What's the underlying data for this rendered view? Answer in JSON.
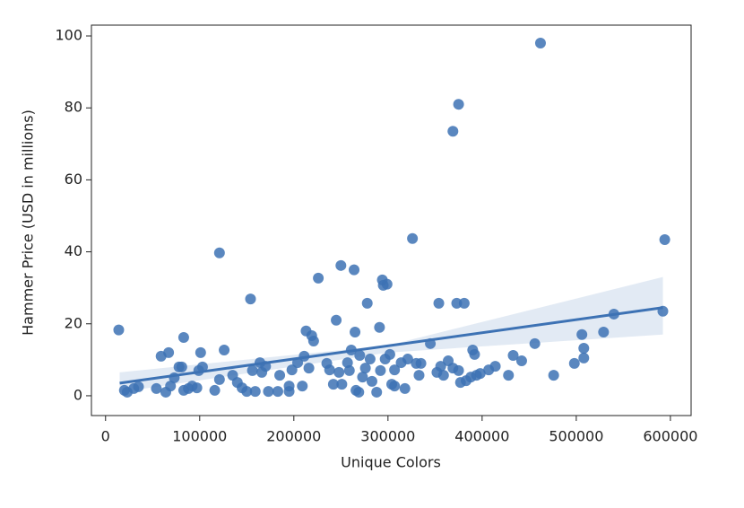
{
  "chart_data": {
    "type": "scatter",
    "xlabel": "Unique Colors",
    "ylabel": "Hammer Price (USD in millions)",
    "xlim": [
      -15000,
      622000
    ],
    "ylim": [
      -5.5,
      103
    ],
    "xticks": [
      0,
      100000,
      200000,
      300000,
      400000,
      500000,
      600000
    ],
    "yticks": [
      0,
      20,
      40,
      60,
      80,
      100
    ],
    "color": "#3d72b4",
    "x": [
      14000,
      20000,
      23000,
      30000,
      35000,
      54000,
      59000,
      64000,
      67000,
      69000,
      73000,
      78000,
      81000,
      83000,
      83000,
      88000,
      92000,
      97000,
      99000,
      101000,
      103000,
      116000,
      121000,
      121000,
      126000,
      135000,
      140000,
      145000,
      150000,
      154000,
      156000,
      159000,
      164000,
      166000,
      170000,
      173000,
      183000,
      185000,
      195000,
      195000,
      198000,
      204000,
      209000,
      211000,
      213000,
      216000,
      219000,
      221000,
      226000,
      235000,
      238000,
      242000,
      245000,
      248000,
      250000,
      251000,
      257000,
      259000,
      261000,
      264000,
      265000,
      266000,
      269000,
      270000,
      273000,
      276000,
      278000,
      281000,
      283000,
      288000,
      291000,
      292000,
      294000,
      295000,
      297000,
      299000,
      302000,
      304000,
      307000,
      307000,
      314000,
      318000,
      321000,
      326000,
      330000,
      333000,
      335000,
      345000,
      352000,
      354000,
      356000,
      359000,
      364000,
      369000,
      369000,
      373000,
      375000,
      375000,
      377000,
      381000,
      383000,
      388000,
      390000,
      392000,
      394000,
      398000,
      407000,
      414000,
      428000,
      433000,
      442000,
      456000,
      462000,
      476000,
      498000,
      506000,
      508000,
      508000,
      529000,
      540000,
      592000,
      594000
    ],
    "y": [
      18.3,
      1.5,
      1,
      2,
      2.5,
      2,
      11,
      1,
      12,
      2.7,
      5,
      8,
      8,
      16.2,
      1.5,
      2,
      2.7,
      2.2,
      7,
      12,
      8,
      1.5,
      39.7,
      4.5,
      12.7,
      5.7,
      3.7,
      2.2,
      1.2,
      26.9,
      7,
      1.2,
      9.2,
      6.5,
      8.2,
      1.2,
      1.2,
      5.7,
      1.2,
      2.7,
      7.2,
      9.2,
      2.7,
      11,
      18,
      7.7,
      16.7,
      15.2,
      32.7,
      9,
      7.2,
      3.2,
      21,
      6.5,
      36.2,
      3.2,
      9.2,
      7,
      12.7,
      35,
      17.7,
      1.5,
      1,
      11.2,
      5.2,
      7.7,
      25.7,
      10.2,
      4,
      1,
      19,
      7,
      32.2,
      30.7,
      10.2,
      31,
      11.5,
      3.2,
      7.2,
      2.7,
      9.2,
      2,
      10.2,
      43.7,
      9,
      5.7,
      9,
      14.5,
      6.5,
      25.7,
      8.2,
      5.7,
      9.7,
      73.5,
      7.7,
      25.7,
      81,
      7,
      3.7,
      25.7,
      4.2,
      5.2,
      12.7,
      11.5,
      5.7,
      6.2,
      7.2,
      8.2,
      5.7,
      11.2,
      9.7,
      14.5,
      98,
      5.7,
      9,
      17,
      13.2,
      10.5,
      17.7,
      22.7,
      23.5,
      43.4
    ],
    "fit": {
      "x": [
        15000,
        592000
      ],
      "y": [
        3.5,
        24.5
      ]
    },
    "band": {
      "x": [
        15000,
        300000,
        592000
      ],
      "lower": [
        1,
        12,
        17
      ],
      "upper": [
        6.5,
        14,
        33
      ]
    }
  }
}
